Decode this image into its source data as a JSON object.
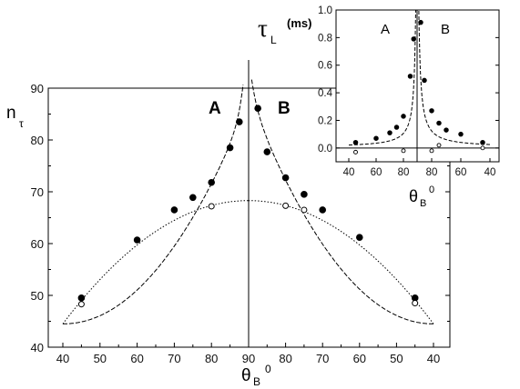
{
  "chart_data": [
    {
      "type": "scatter",
      "y_axis_label": {
        "main": "n",
        "sub": "τ"
      },
      "x_axis_label": {
        "main": "θ",
        "sub": "B",
        "sup": "0"
      },
      "region_labels": [
        "A",
        "B"
      ],
      "x_tick_labels": [
        "40",
        "50",
        "60",
        "70",
        "80",
        "90",
        "80",
        "70",
        "60",
        "50",
        "40"
      ],
      "y_tick_labels": [
        "40",
        "50",
        "60",
        "70",
        "80",
        "90"
      ],
      "ylim": [
        40,
        90
      ],
      "x_description": "angle θB in degrees; left half (A) runs 40→90, right half (B) runs 90→40",
      "series": [
        {
          "marker": "filled-circle",
          "A": [
            [
              45,
              49.5
            ],
            [
              60,
              60.7
            ],
            [
              70,
              66.5
            ],
            [
              75,
              68.9
            ],
            [
              80,
              71.8
            ],
            [
              85,
              78.5
            ],
            [
              87.5,
              83.5
            ]
          ],
          "B": [
            [
              87.5,
              86.1
            ],
            [
              85,
              77.7
            ],
            [
              80,
              72.7
            ],
            [
              75,
              69.5
            ],
            [
              70,
              66.5
            ],
            [
              60,
              61.2
            ],
            [
              45,
              49.5
            ]
          ]
        },
        {
          "marker": "open-circle",
          "A": [
            [
              45,
              48.3
            ],
            [
              80,
              67.2
            ]
          ],
          "B": [
            [
              80,
              67.3
            ],
            [
              75,
              66.5
            ],
            [
              45,
              48.5
            ]
          ]
        }
      ],
      "curves": [
        {
          "style": "dashed",
          "description": "fit to filled points, diverging toward 90°"
        },
        {
          "style": "dotted",
          "description": "fit to open points, maximum near 90°"
        }
      ]
    },
    {
      "type": "scatter",
      "title": "τL (ms)",
      "title_main": "τ",
      "title_sub": "L",
      "title_unit": "(ms)",
      "inset": true,
      "region_labels": [
        "A",
        "B"
      ],
      "x_axis_label": {
        "main": "θ",
        "sub": "B",
        "sup": "0"
      },
      "x_tick_labels": [
        "40",
        "60",
        "80",
        "80",
        "60",
        "40"
      ],
      "y_tick_labels": [
        "0.0",
        "0.2",
        "0.4",
        "0.6",
        "0.8",
        "1.0"
      ],
      "ylim": [
        -0.1,
        1.0
      ],
      "series": [
        {
          "marker": "filled-circle",
          "A": [
            [
              45,
              0.04
            ],
            [
              60,
              0.07
            ],
            [
              70,
              0.11
            ],
            [
              75,
              0.15
            ],
            [
              80,
              0.23
            ],
            [
              85,
              0.52
            ],
            [
              87.5,
              0.79
            ]
          ],
          "B": [
            [
              87.5,
              0.91
            ],
            [
              85,
              0.49
            ],
            [
              80,
              0.27
            ],
            [
              75,
              0.18
            ],
            [
              70,
              0.13
            ],
            [
              60,
              0.1
            ],
            [
              45,
              0.04
            ]
          ]
        },
        {
          "marker": "open-circle",
          "A": [
            [
              45,
              -0.03
            ],
            [
              80,
              -0.02
            ]
          ],
          "B": [
            [
              80,
              -0.02
            ],
            [
              75,
              0.02
            ],
            [
              45,
              0.0
            ]
          ]
        }
      ]
    }
  ]
}
